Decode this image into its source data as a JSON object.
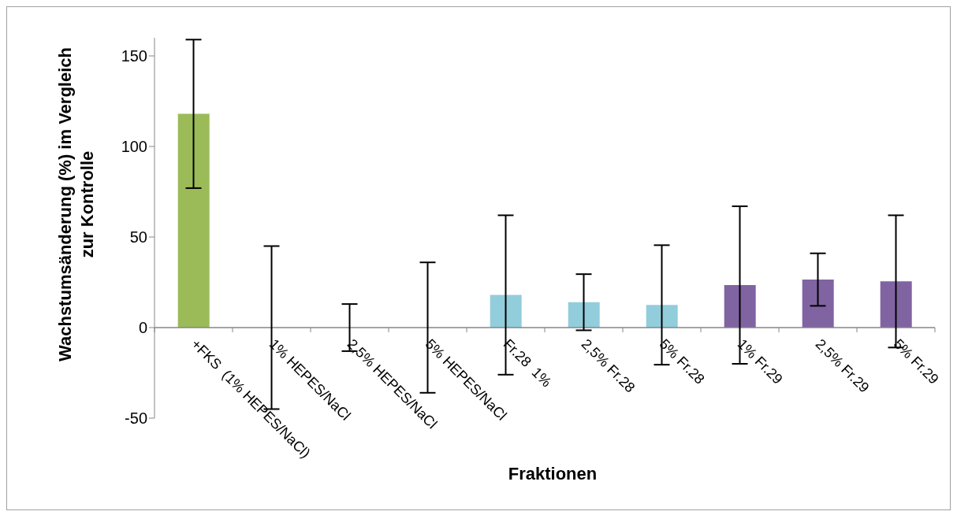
{
  "chart_data": {
    "type": "bar",
    "ylabel": "Wachstumsänderung (%) im Vergleich\nzur Kontrolle",
    "xlabel": "Fraktionen",
    "categories": [
      "+FKS  (1% HEPES/NaCl)",
      "1% HEPES/NaCl",
      "2,5% HEPES/NaCl",
      "5% HEPES/NaCl",
      "Fr.28  1%",
      "2,5% Fr.28",
      "5% Fr.28",
      "1% Fr.29",
      "2,5% Fr.29",
      "5% Fr.29"
    ],
    "values": [
      118,
      0,
      0,
      0,
      18,
      14,
      12.5,
      23.5,
      26.5,
      25.5
    ],
    "errors": [
      41,
      45,
      13,
      36,
      44,
      15.5,
      33,
      43.5,
      14.5,
      36.5
    ],
    "colors": [
      "#9bbb59",
      "#4bacc6",
      "#4bacc6",
      "#4bacc6",
      "#92cddc",
      "#92cddc",
      "#92cddc",
      "#8064a2",
      "#8064a2",
      "#8064a2"
    ],
    "ylim": [
      -50,
      160
    ],
    "yticks": [
      -50,
      0,
      50,
      100,
      150
    ],
    "grid": false,
    "legend": false
  }
}
